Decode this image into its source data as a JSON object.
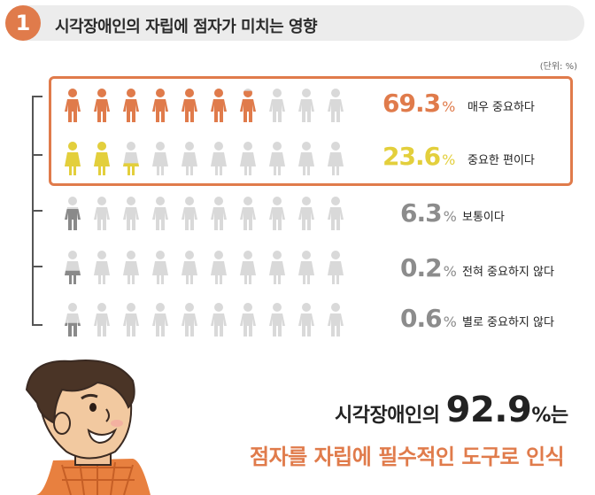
{
  "header": {
    "number": "1",
    "title": "시각장애인의 자립에 점자가 미치는 영향"
  },
  "unit_note": "(단위: %)",
  "colors": {
    "accent": "#e07b4b",
    "yellow": "#e3cf3c",
    "dark_gray": "#8a8a8a",
    "light_gray": "#d9d9d9",
    "pct_gray": "#8c8c8c"
  },
  "chart_data": {
    "type": "pictograph",
    "unit": "%",
    "icons_per_row": 10,
    "categories": [
      "매우 중요하다",
      "중요한 편이다",
      "보통이다",
      "전혀 중요하지 않다",
      "별로 중요하지 않다"
    ],
    "values": [
      69.3,
      23.6,
      6.3,
      0.2,
      0.6
    ],
    "value_labels": [
      "69.3",
      "23.6",
      "6.3",
      "0.2",
      "0.6"
    ],
    "percent_symbol": "%"
  },
  "summary": {
    "line1_prefix": "시각장애인의",
    "line1_value": "92.9",
    "line1_pct": "%",
    "line1_suffix": "는",
    "line2": "점자를 자립에 필수적인 도구로 인식"
  }
}
